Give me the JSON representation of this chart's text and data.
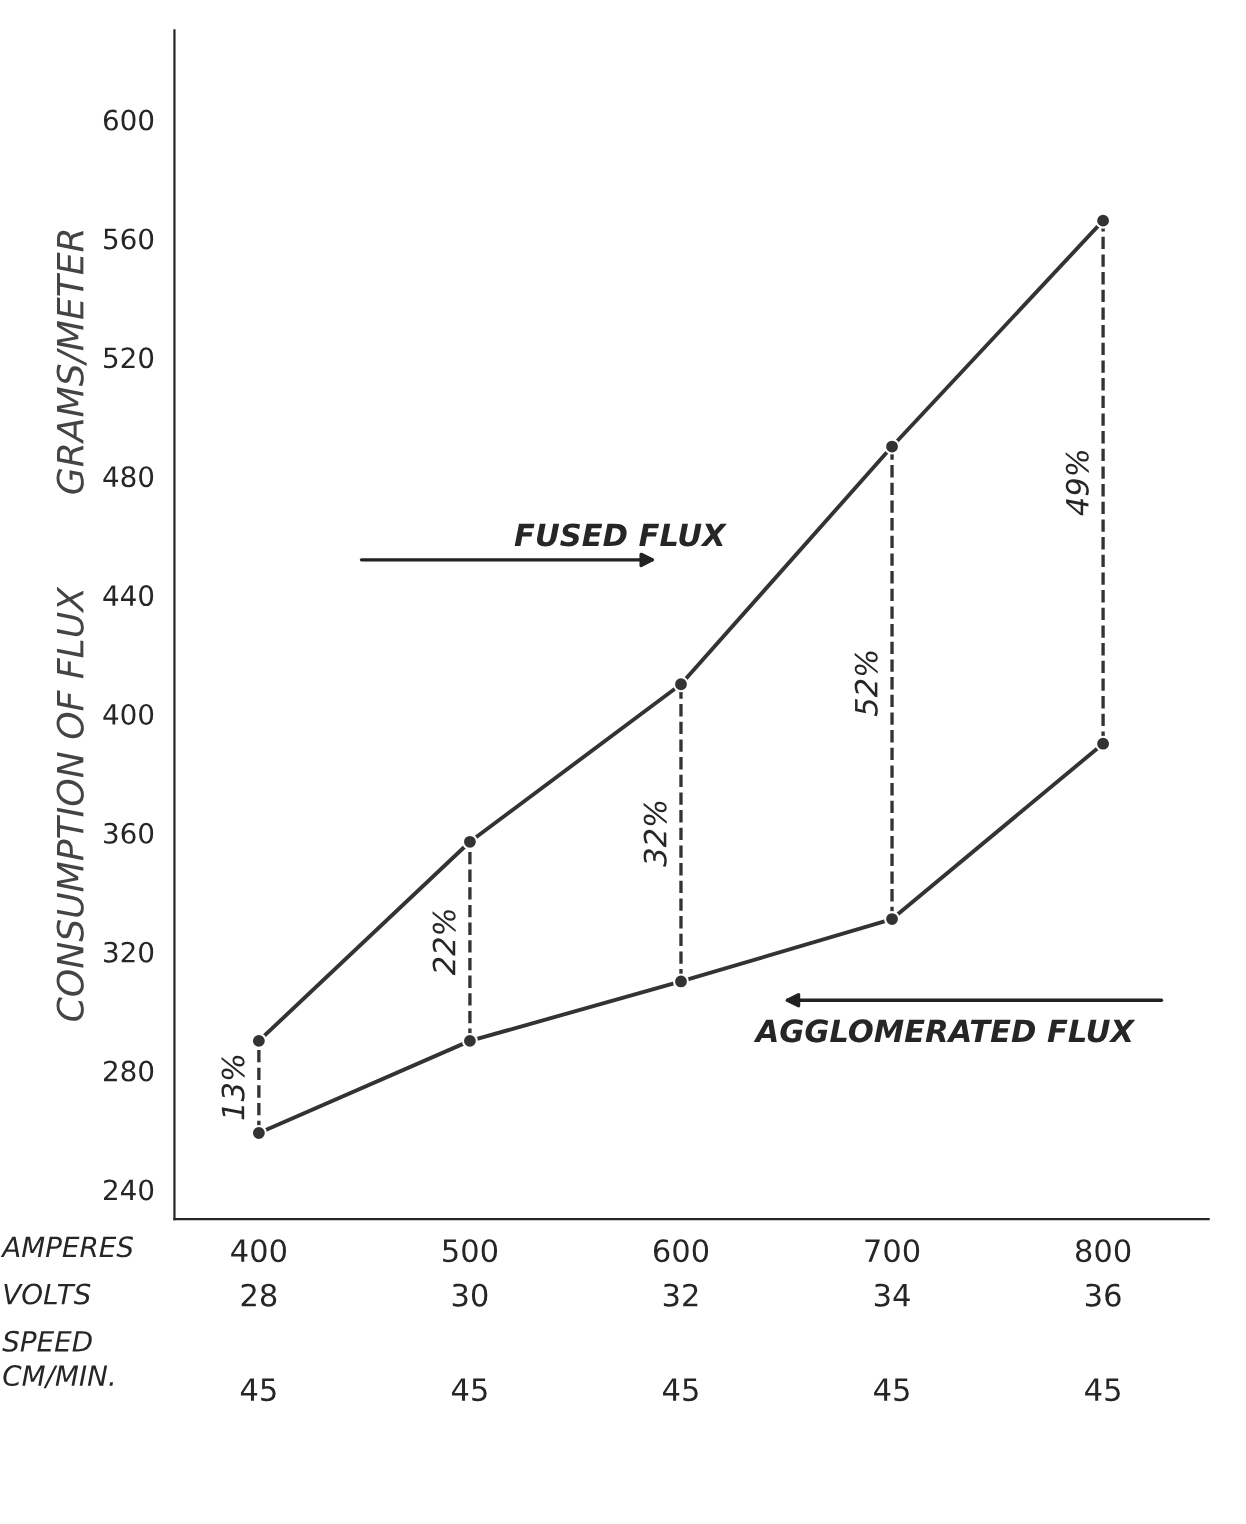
{
  "chart_data": {
    "type": "line",
    "ylabel": "CONSUMPTION OF FLUX        GRAMS/METER",
    "x": [
      400,
      500,
      600,
      700,
      800
    ],
    "xlim": [
      360,
      850
    ],
    "xticks": [
      400,
      500,
      600,
      700,
      800
    ],
    "ylim": [
      230,
      630
    ],
    "yticks": [
      240,
      280,
      320,
      360,
      400,
      440,
      480,
      520,
      560,
      600
    ],
    "series": [
      {
        "color": "#333333",
        "values": [
          290,
          357,
          410,
          490,
          566
        ]
      },
      {
        "color": "#333333",
        "values": [
          259,
          290,
          310,
          331,
          390
        ]
      }
    ],
    "marker": "circle",
    "line_style": "solid",
    "grid": false,
    "legend": false,
    "annotations": [
      "FUSED FLUX",
      "AGGLOMERATED FLUX",
      "13%",
      "22%",
      "32%",
      "52%",
      "49%",
      "AMPERES",
      "VOLTS",
      "28",
      "30",
      "32",
      "34",
      "36",
      "SPEED\nCM/MIN.",
      "45",
      "45",
      "45",
      "45",
      "45"
    ]
  }
}
